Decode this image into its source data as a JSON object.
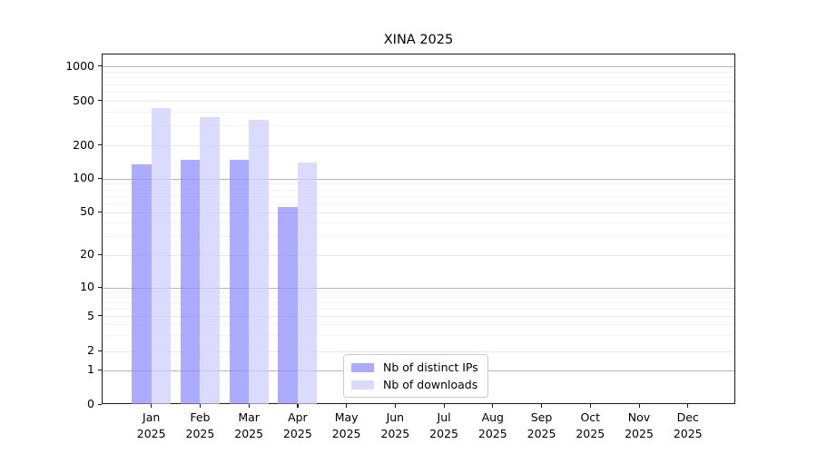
{
  "title": "XINA 2025",
  "chart_data": {
    "type": "bar",
    "title": "XINA 2025",
    "categories": [
      "Jan",
      "Feb",
      "Mar",
      "Apr",
      "May",
      "Jun",
      "Jul",
      "Aug",
      "Sep",
      "Oct",
      "Nov",
      "Dec"
    ],
    "x_tick_year": "2025",
    "series": [
      {
        "name": "Nb of distinct IPs",
        "color": "#8888ff",
        "values": [
          136,
          150,
          148,
          56,
          0,
          0,
          0,
          0,
          0,
          0,
          0,
          0
        ]
      },
      {
        "name": "Nb of downloads",
        "color": "#ccccff",
        "values": [
          434,
          362,
          340,
          141,
          0,
          0,
          0,
          0,
          0,
          0,
          0,
          0
        ]
      }
    ],
    "yticks": [
      0,
      1,
      2,
      5,
      10,
      20,
      50,
      100,
      200,
      500,
      1000
    ],
    "yscale": "log",
    "ylim": [
      0,
      1300
    ],
    "grid": true,
    "legend_position": "lower center"
  }
}
